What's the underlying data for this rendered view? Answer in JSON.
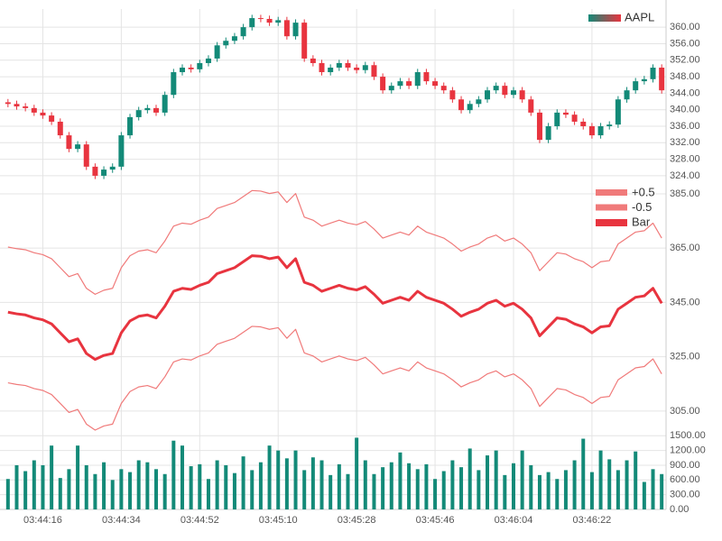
{
  "chart_data": [
    {
      "type": "candlestick",
      "name": "AAPL",
      "up_color": "#138a78",
      "down_color": "#e8343f",
      "x": [
        "03:44:08",
        "03:44:10",
        "03:44:12",
        "03:44:14",
        "03:44:16",
        "03:44:18",
        "03:44:20",
        "03:44:22",
        "03:44:24",
        "03:44:26",
        "03:44:28",
        "03:44:30",
        "03:44:32",
        "03:44:34",
        "03:44:36",
        "03:44:38",
        "03:44:40",
        "03:44:42",
        "03:44:44",
        "03:44:46",
        "03:44:48",
        "03:44:50",
        "03:44:52",
        "03:44:54",
        "03:44:56",
        "03:44:58",
        "03:45:00",
        "03:45:02",
        "03:45:04",
        "03:45:06",
        "03:45:08",
        "03:45:10",
        "03:45:12",
        "03:45:14",
        "03:45:16",
        "03:45:18",
        "03:45:20",
        "03:45:22",
        "03:45:24",
        "03:45:26",
        "03:45:28",
        "03:45:30",
        "03:45:32",
        "03:45:34",
        "03:45:36",
        "03:45:38",
        "03:45:40",
        "03:45:42",
        "03:45:44",
        "03:45:46",
        "03:45:48",
        "03:45:50",
        "03:45:52",
        "03:45:54",
        "03:45:56",
        "03:45:58",
        "03:46:00",
        "03:46:02",
        "03:46:04",
        "03:46:06",
        "03:46:08",
        "03:46:10",
        "03:46:12",
        "03:46:14",
        "03:46:16",
        "03:46:18",
        "03:46:20",
        "03:46:22",
        "03:46:24",
        "03:46:26",
        "03:46:28",
        "03:46:30",
        "03:46:32",
        "03:46:34",
        "03:46:36",
        "03:46:38"
      ],
      "open": [
        341.8,
        341.4,
        340.8,
        340.4,
        339.3,
        338.6,
        337.1,
        333.8,
        330.5,
        331.6,
        326.2,
        324.0,
        325.5,
        326.2,
        333.8,
        338.2,
        339.9,
        340.4,
        339.3,
        343.6,
        349.1,
        350.2,
        349.8,
        351.3,
        352.4,
        355.6,
        356.7,
        357.8,
        360.0,
        362.2,
        362.0,
        361.1,
        361.7,
        357.8,
        361.1,
        352.4,
        351.3,
        349.1,
        350.2,
        351.3,
        350.2,
        349.6,
        350.8,
        348.0,
        344.7,
        345.8,
        346.9,
        345.8,
        349.1,
        346.9,
        345.8,
        344.7,
        342.5,
        339.9,
        341.4,
        342.5,
        344.7,
        345.8,
        343.6,
        344.7,
        342.5,
        339.3,
        332.7,
        336.0,
        339.3,
        338.8,
        337.1,
        336.0,
        333.8,
        336.0,
        336.4,
        342.5,
        344.7,
        346.9,
        347.4,
        350.2
      ],
      "high": [
        342.6,
        342.2,
        341.6,
        341.2,
        340.1,
        339.4,
        337.9,
        334.6,
        332.4,
        332.4,
        327.0,
        326.3,
        327.0,
        334.6,
        339.0,
        340.7,
        341.2,
        341.2,
        344.4,
        349.9,
        351.0,
        351.0,
        352.1,
        353.2,
        356.4,
        357.5,
        358.6,
        360.8,
        363.0,
        363.0,
        362.8,
        362.5,
        362.5,
        361.9,
        361.9,
        353.2,
        352.1,
        351.0,
        352.1,
        352.1,
        351.0,
        351.6,
        351.6,
        348.8,
        346.6,
        347.7,
        347.7,
        349.9,
        349.9,
        347.7,
        346.6,
        345.5,
        343.3,
        342.2,
        343.3,
        345.5,
        346.6,
        346.6,
        345.5,
        345.5,
        343.3,
        340.1,
        336.8,
        340.1,
        340.1,
        339.6,
        337.9,
        336.8,
        336.8,
        337.2,
        343.3,
        345.5,
        347.7,
        348.2,
        351.0,
        351.0
      ],
      "low": [
        340.6,
        340.0,
        339.6,
        338.5,
        337.8,
        336.3,
        333.0,
        329.7,
        329.7,
        325.4,
        323.2,
        323.2,
        324.7,
        325.4,
        333.0,
        337.4,
        339.1,
        338.5,
        338.5,
        342.8,
        348.3,
        349.0,
        349.0,
        350.5,
        351.6,
        354.8,
        355.9,
        357.0,
        359.2,
        361.2,
        360.3,
        360.3,
        357.0,
        357.0,
        351.6,
        350.5,
        348.3,
        348.3,
        349.4,
        349.4,
        348.8,
        348.8,
        347.2,
        343.9,
        343.9,
        345.0,
        345.0,
        345.0,
        346.1,
        345.0,
        343.9,
        341.7,
        339.1,
        339.1,
        340.6,
        341.7,
        343.9,
        342.8,
        342.8,
        341.7,
        338.5,
        331.9,
        331.9,
        335.2,
        338.0,
        336.3,
        335.2,
        333.0,
        333.0,
        335.2,
        335.6,
        341.7,
        343.9,
        346.1,
        346.6,
        343.9
      ],
      "close": [
        341.4,
        340.8,
        340.4,
        339.3,
        338.6,
        337.1,
        333.8,
        330.5,
        331.6,
        326.2,
        324.0,
        325.5,
        326.2,
        333.8,
        338.2,
        339.9,
        340.4,
        339.3,
        343.6,
        349.1,
        350.2,
        349.8,
        351.3,
        352.4,
        355.6,
        356.7,
        357.8,
        360.0,
        362.2,
        362.0,
        361.1,
        361.7,
        357.8,
        361.1,
        352.4,
        351.3,
        349.1,
        350.2,
        351.3,
        350.2,
        349.6,
        350.8,
        348.0,
        344.7,
        345.8,
        346.9,
        345.8,
        349.1,
        346.9,
        345.8,
        344.7,
        342.5,
        339.9,
        341.4,
        342.5,
        344.7,
        345.8,
        343.6,
        344.7,
        342.5,
        339.3,
        332.7,
        336.0,
        339.3,
        338.8,
        337.1,
        336.0,
        333.8,
        336.0,
        336.4,
        342.5,
        344.7,
        346.9,
        347.4,
        350.2,
        344.7
      ],
      "ylim": [
        321.8,
        364.4
      ],
      "yticks": [
        {
          "value": 324,
          "label": "324.00"
        },
        {
          "value": 328,
          "label": "328.00"
        },
        {
          "value": 332,
          "label": "332.00"
        },
        {
          "value": 336,
          "label": "336.00"
        },
        {
          "value": 340,
          "label": "340.00"
        },
        {
          "value": 344,
          "label": "344.00"
        },
        {
          "value": 348,
          "label": "348.00"
        },
        {
          "value": 352,
          "label": "352.00"
        },
        {
          "value": 356,
          "label": "356.00"
        },
        {
          "value": 360,
          "label": "360.00"
        }
      ],
      "grid": true
    },
    {
      "type": "line",
      "series": [
        {
          "name": "+0.5",
          "color": "#f07a7a",
          "width": 1.2,
          "values": [
            365.4,
            364.8,
            364.4,
            363.3,
            362.6,
            361.1,
            357.8,
            354.5,
            355.6,
            350.2,
            348,
            349.5,
            350.2,
            357.8,
            362.2,
            363.9,
            364.4,
            363.3,
            367.6,
            373.1,
            374.2,
            373.8,
            375.3,
            376.4,
            379.6,
            380.7,
            381.8,
            384,
            386.2,
            386,
            385.1,
            385.7,
            381.8,
            385.1,
            376.4,
            375.3,
            373.1,
            374.2,
            375.3,
            374.2,
            373.6,
            374.8,
            372,
            368.7,
            369.8,
            370.9,
            369.8,
            373.1,
            370.9,
            369.8,
            368.7,
            366.5,
            363.9,
            365.4,
            366.5,
            368.7,
            369.8,
            367.6,
            368.7,
            366.5,
            363.3,
            356.7,
            360,
            363.3,
            362.8,
            361.1,
            360,
            357.8,
            360,
            360.4,
            366.5,
            368.7,
            370.9,
            371.4,
            374.2,
            368.7
          ]
        },
        {
          "name": "-0.5",
          "color": "#f07a7a",
          "width": 1.2,
          "values": [
            315.4,
            314.8,
            314.4,
            313.3,
            312.6,
            311.1,
            307.8,
            304.5,
            305.6,
            300.2,
            298,
            299.5,
            300.2,
            307.8,
            312.2,
            313.9,
            314.4,
            313.3,
            317.6,
            323.1,
            324.2,
            323.8,
            325.3,
            326.4,
            329.6,
            330.7,
            331.8,
            334,
            336.2,
            336,
            335.1,
            335.7,
            331.8,
            335.1,
            326.4,
            325.3,
            323.1,
            324.2,
            325.3,
            324.2,
            323.6,
            324.8,
            322,
            318.7,
            319.8,
            320.9,
            319.8,
            323.1,
            320.9,
            319.8,
            318.7,
            316.5,
            313.9,
            315.4,
            316.5,
            318.7,
            319.8,
            317.6,
            318.7,
            316.5,
            313.3,
            306.7,
            310,
            313.3,
            312.8,
            311.1,
            310,
            307.8,
            310,
            310.4,
            316.5,
            318.7,
            320.9,
            321.4,
            324.2,
            318.7
          ]
        },
        {
          "name": "Bar",
          "color": "#e8343f",
          "width": 3,
          "values": [
            341.4,
            340.8,
            340.4,
            339.3,
            338.6,
            337.1,
            333.8,
            330.5,
            331.6,
            326.2,
            324.0,
            325.5,
            326.2,
            333.8,
            338.2,
            339.9,
            340.4,
            339.3,
            343.6,
            349.1,
            350.2,
            349.8,
            351.3,
            352.4,
            355.6,
            356.7,
            357.8,
            360.0,
            362.2,
            362.0,
            361.1,
            361.7,
            357.8,
            361.1,
            352.4,
            351.3,
            349.1,
            350.2,
            351.3,
            350.2,
            349.6,
            350.8,
            348.0,
            344.7,
            345.8,
            346.9,
            345.8,
            349.1,
            346.9,
            345.8,
            344.7,
            342.5,
            339.9,
            341.4,
            342.5,
            344.7,
            345.8,
            343.6,
            344.7,
            342.5,
            339.3,
            332.7,
            336.0,
            339.3,
            338.8,
            337.1,
            336.0,
            333.8,
            336.0,
            336.4,
            342.5,
            344.7,
            346.9,
            347.4,
            350.2,
            344.7
          ]
        }
      ],
      "ylim": [
        297,
        388.3
      ],
      "yticks": [
        {
          "value": 305,
          "label": "305.00"
        },
        {
          "value": 325,
          "label": "325.00"
        },
        {
          "value": 345,
          "label": "345.00"
        },
        {
          "value": 365,
          "label": "365.00"
        },
        {
          "value": 385,
          "label": "385.00"
        }
      ],
      "grid": true
    },
    {
      "type": "bar",
      "color": "#138a78",
      "values": [
        620,
        900,
        780,
        1000,
        900,
        1300,
        640,
        820,
        1300,
        900,
        720,
        960,
        600,
        820,
        760,
        1000,
        960,
        820,
        720,
        1400,
        1300,
        880,
        920,
        620,
        1000,
        900,
        740,
        1080,
        800,
        960,
        1300,
        1200,
        1040,
        1200,
        800,
        1060,
        1000,
        700,
        920,
        720,
        1460,
        1000,
        720,
        860,
        960,
        1160,
        940,
        820,
        920,
        620,
        780,
        1000,
        860,
        1240,
        800,
        1100,
        1200,
        700,
        940,
        1200,
        900,
        700,
        760,
        620,
        800,
        1000,
        1440,
        760,
        1200,
        1020,
        800,
        1000,
        1180,
        560,
        820,
        720
      ],
      "ylim": [
        0,
        1560
      ],
      "yticks": [
        {
          "value": 0,
          "label": "0.00"
        },
        {
          "value": 300,
          "label": "300.00"
        },
        {
          "value": 600,
          "label": "600.00"
        },
        {
          "value": 900,
          "label": "900.00"
        },
        {
          "value": 1200,
          "label": "1200.00"
        },
        {
          "value": 1500,
          "label": "1500.00"
        }
      ],
      "xticks": [
        "03:44:16",
        "03:44:34",
        "03:44:52",
        "03:45:10",
        "03:45:28",
        "03:45:46",
        "03:46:04",
        "03:46:22"
      ],
      "grid": true
    }
  ]
}
